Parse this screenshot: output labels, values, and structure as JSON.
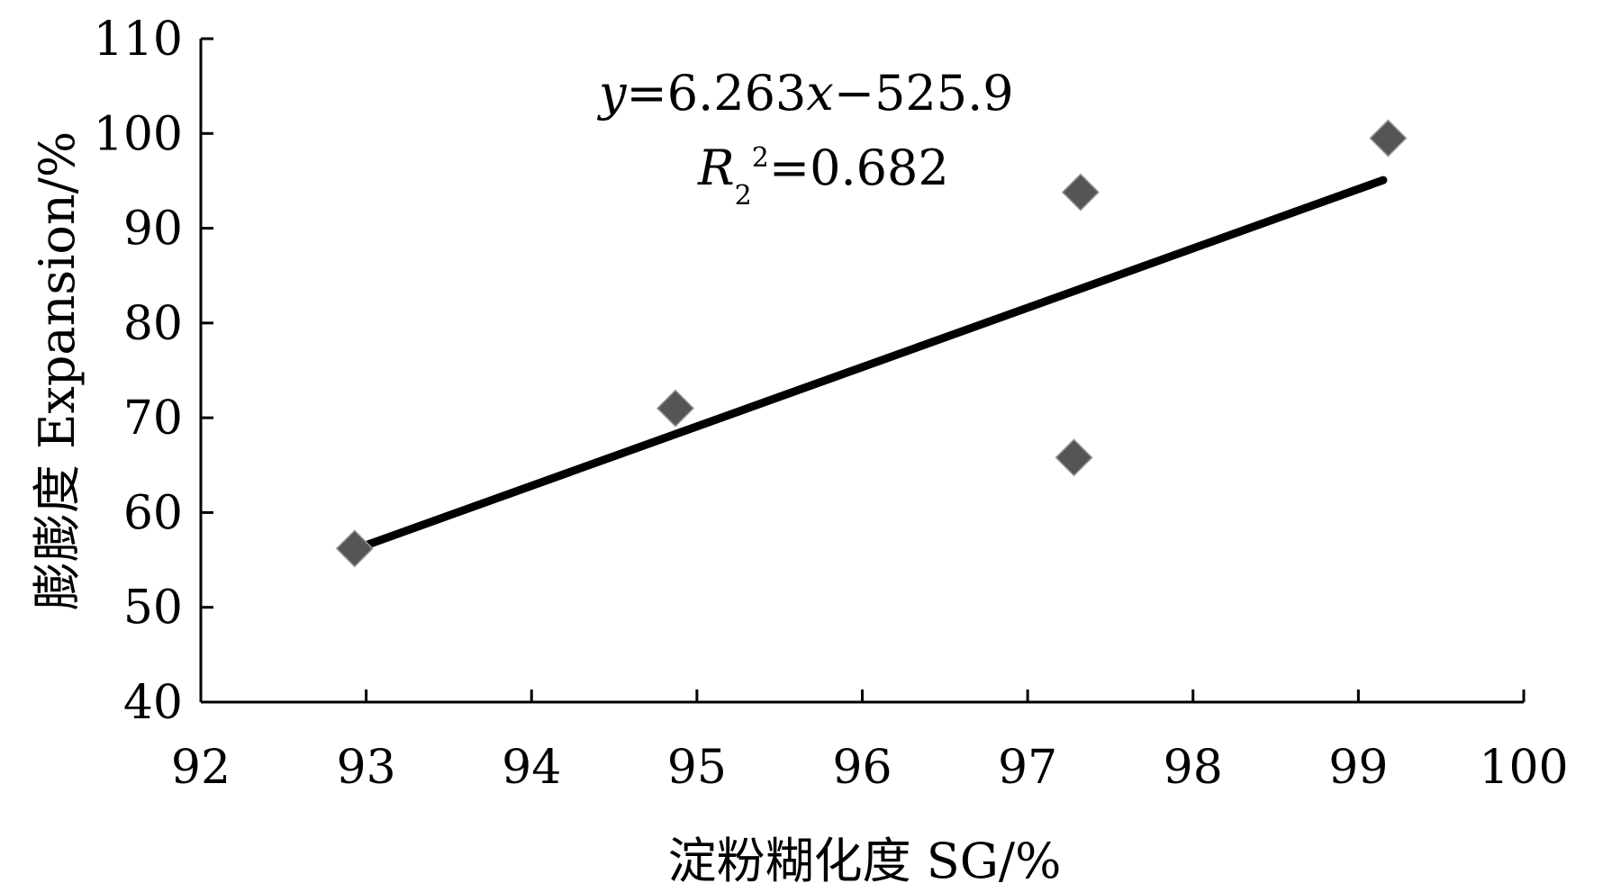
{
  "chart_data": {
    "type": "scatter",
    "title": "",
    "xlabel": "淀粉糊化度 SG/%",
    "ylabel": "膨膨度 Expansion/%",
    "xlim": [
      92,
      100
    ],
    "ylim": [
      40,
      110
    ],
    "x_ticks": [
      92,
      93,
      94,
      95,
      96,
      97,
      98,
      99,
      100
    ],
    "y_ticks": [
      40,
      50,
      60,
      70,
      80,
      90,
      100,
      110
    ],
    "grid": false,
    "legend": "none",
    "series": [
      {
        "marker": "diamond",
        "color": "#555555",
        "x": [
          92.93,
          94.87,
          97.28,
          97.32,
          99.18
        ],
        "y": [
          56.2,
          71.0,
          65.8,
          93.8,
          99.5
        ]
      }
    ],
    "trendline": {
      "slope": 6.263,
      "intercept": -525.9,
      "x_range": [
        92.95,
        99.15
      ],
      "color": "#000000"
    },
    "annotations": {
      "equation": {
        "y": "y",
        "rest": "=6.263",
        "x": "x",
        "tail": "−525.9"
      },
      "r2": {
        "R": "R",
        "sub": "2",
        "sup": "2",
        "tail": "=0.682"
      }
    }
  }
}
